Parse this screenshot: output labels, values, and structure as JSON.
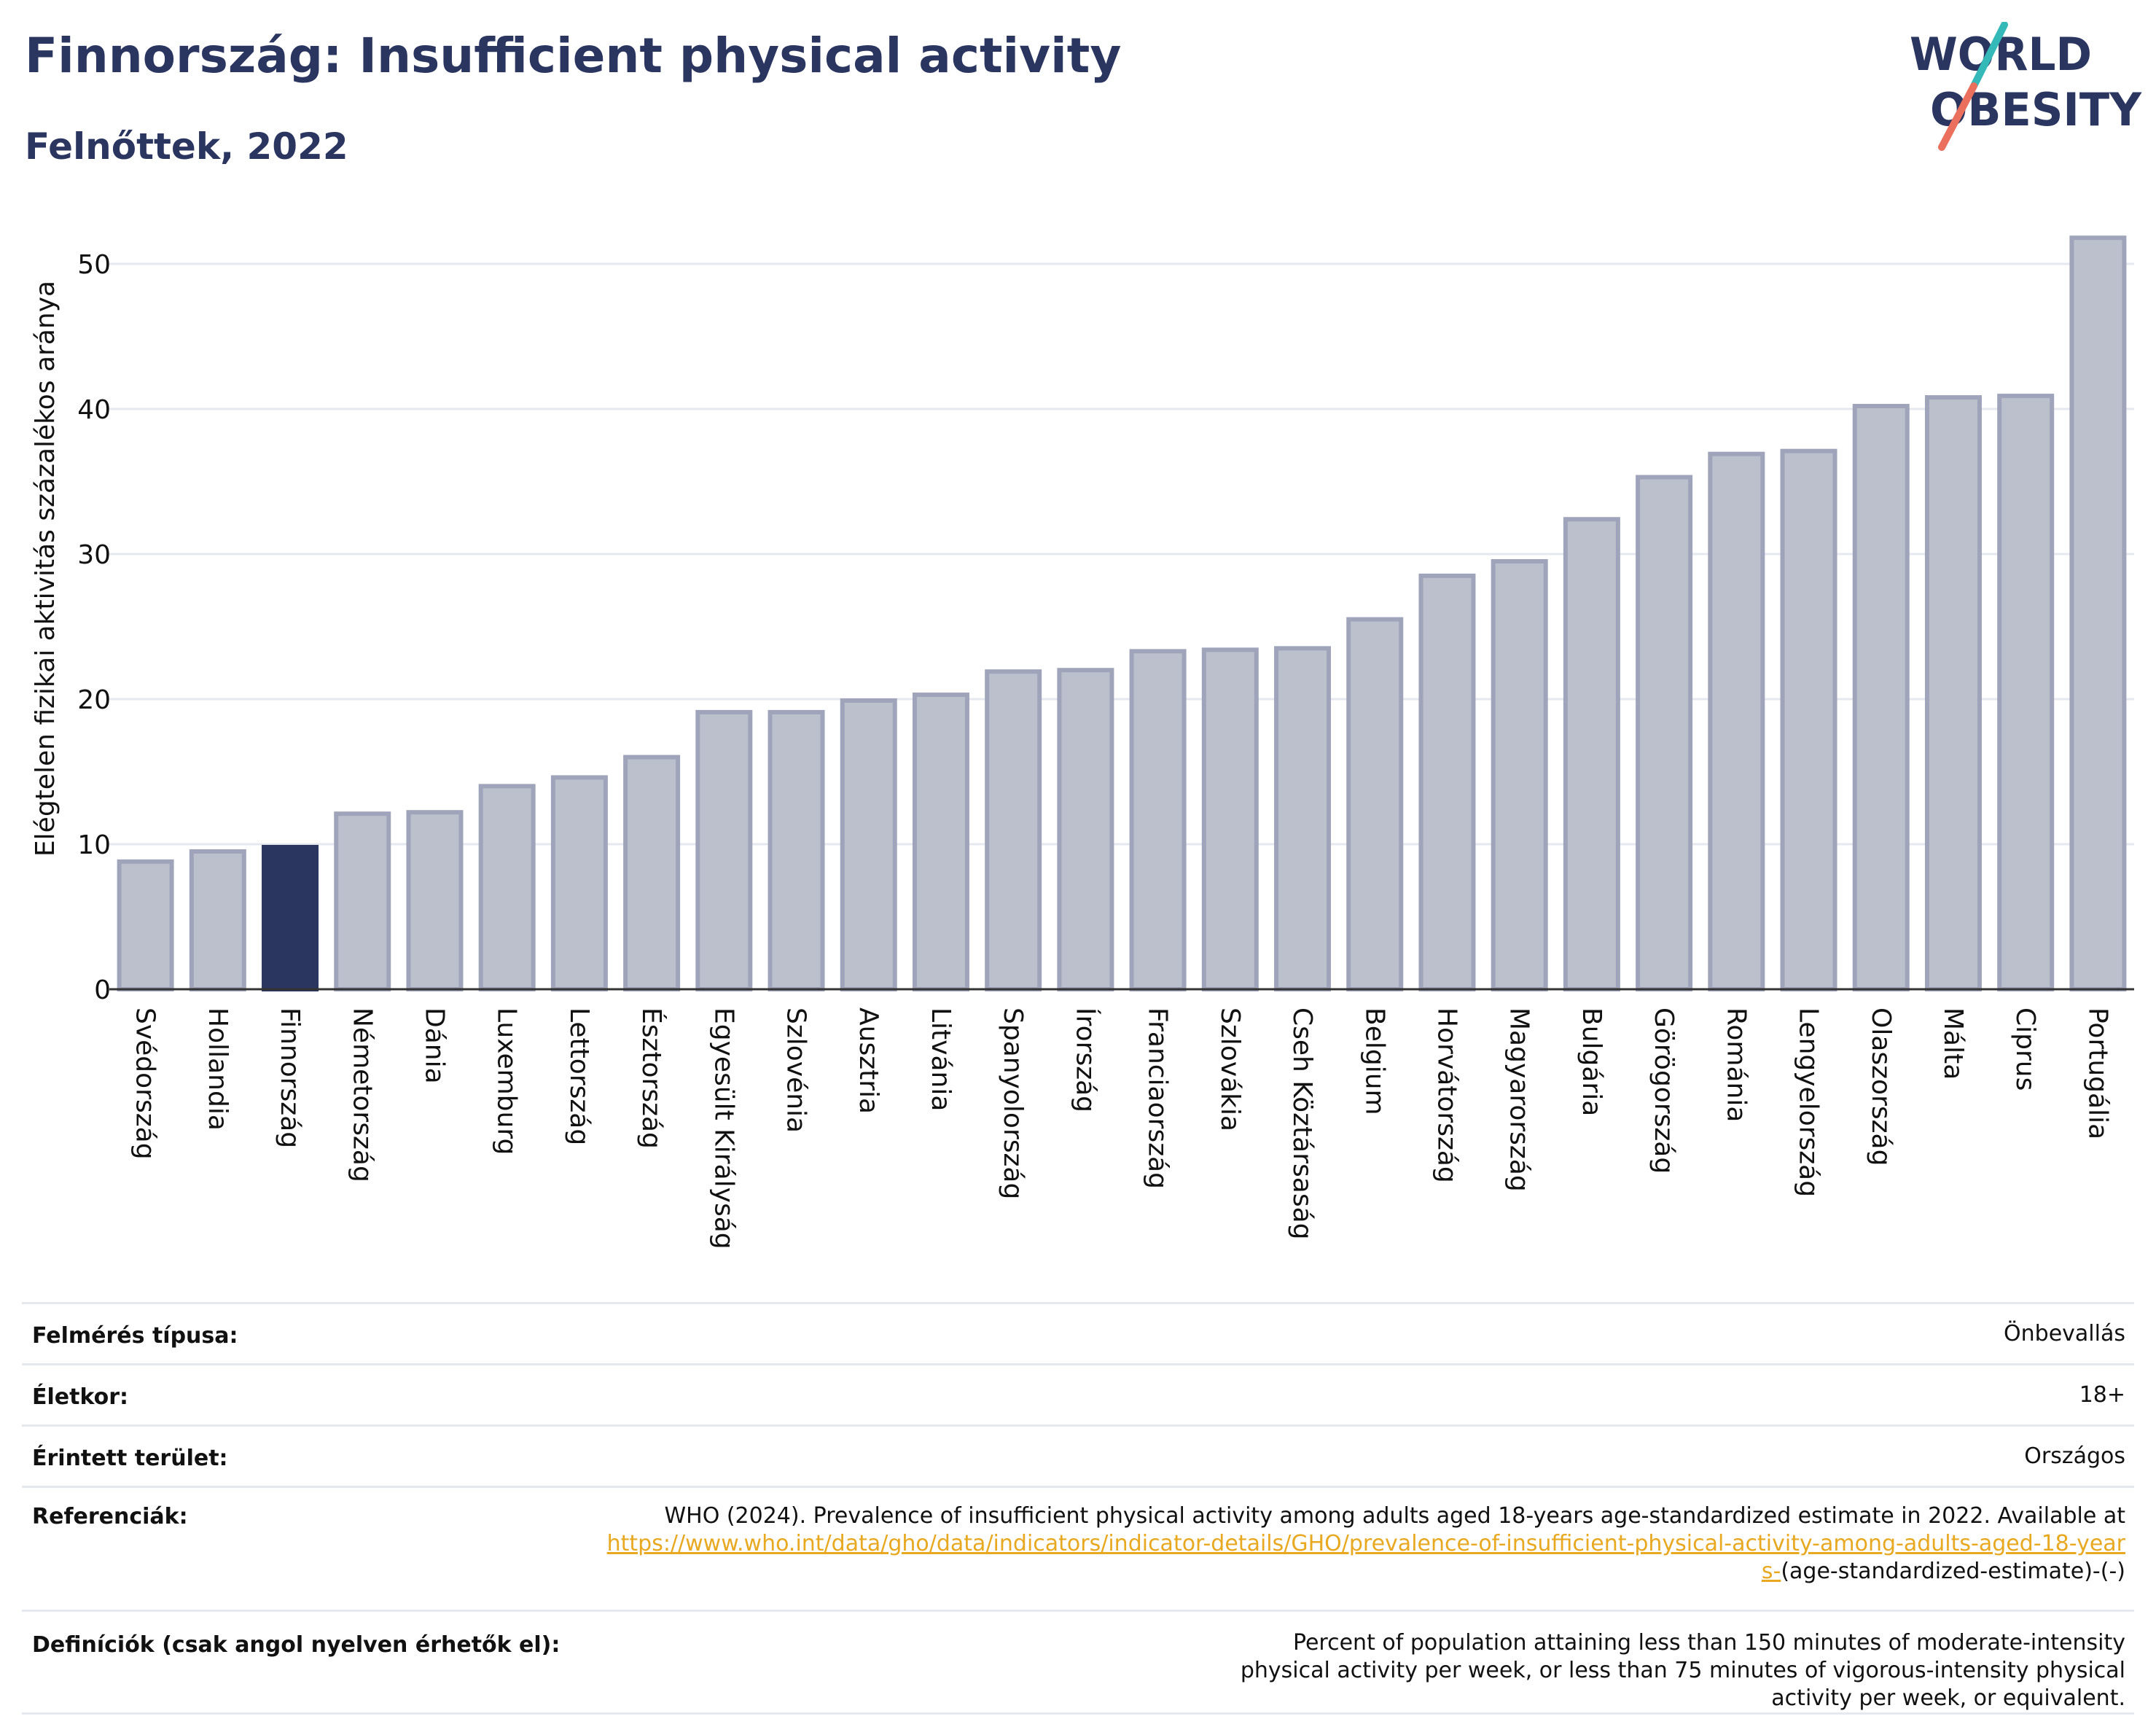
{
  "title": "Finnország: Insufficient physical activity",
  "subtitle": "Felnőttek, 2022",
  "logo": {
    "line1": "WORLD",
    "line2": "OBESITY"
  },
  "colors": {
    "bar": "#bcc0cd",
    "bar_edge": "#9fa4bb",
    "highlight": "#2a3560",
    "title": "#2a3560",
    "grid": "#e6e8f0",
    "link": "#e8a820",
    "logo_slash_teal": "#34b8b8",
    "logo_slash_coral": "#ea6f5c"
  },
  "chart_data": {
    "type": "bar",
    "title": "",
    "xlabel": "",
    "ylabel": "Elégtelen fizikai aktivitás százalékos aránya",
    "ylim": [
      0,
      53
    ],
    "yticks": [
      0,
      10,
      20,
      30,
      40,
      50
    ],
    "grid": true,
    "highlight": "Finnország",
    "categories": [
      "Svédország",
      "Hollandia",
      "Finnország",
      "Németország",
      "Dánia",
      "Luxemburg",
      "Lettország",
      "Észtország",
      "Egyesült Királyság",
      "Szlovénia",
      "Ausztria",
      "Litvánia",
      "Spanyolország",
      "Írország",
      "Franciaország",
      "Szlovákia",
      "Cseh Köztársaság",
      "Belgium",
      "Horvátország",
      "Magyarország",
      "Bulgária",
      "Görögország",
      "Románia",
      "Lengyelország",
      "Olaszország",
      "Málta",
      "Ciprus",
      "Portugália"
    ],
    "values": [
      8.8,
      9.5,
      9.8,
      12.1,
      12.2,
      14.0,
      14.6,
      16.0,
      19.1,
      19.1,
      19.9,
      20.3,
      21.9,
      22.0,
      23.3,
      23.4,
      23.5,
      25.5,
      28.5,
      29.5,
      32.4,
      35.3,
      36.9,
      37.1,
      40.2,
      40.8,
      40.9,
      51.8
    ]
  },
  "meta": {
    "survey_type_label": "Felmérés típusa:",
    "survey_type_value": "Önbevallás",
    "age_label": "Életkor:",
    "age_value": "18+",
    "area_label": "Érintett terület:",
    "area_value": "Országos",
    "references_label": "Referenciák:",
    "references_text": "WHO (2024). Prevalence of insufficient physical activity among adults aged 18-years age-standardized estimate in 2022. Available at",
    "references_link": "https://www.who.int/data/gho/data/indicators/indicator-details/GHO/prevalence-of-insufficient-physical-activity-among-adults-aged-18-years-",
    "references_suffix": "(age-standardized-estimate)-(-)",
    "definitions_label": "Definíciók (csak angol nyelven érhetők el):",
    "definitions_text": "Percent of population attaining less than 150 minutes of moderate-intensity physical activity per week, or less than 75 minutes of vigorous-intensity physical activity per week, or equivalent."
  }
}
